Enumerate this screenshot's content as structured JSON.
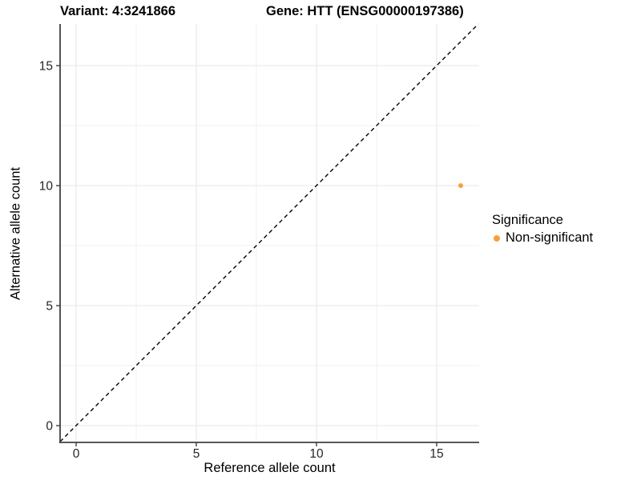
{
  "titles": {
    "variant": "Variant: 4:3241866",
    "gene": "Gene: HTT (ENSG00000197386)"
  },
  "chart_data": {
    "type": "scatter",
    "title_left": "Variant: 4:3241866",
    "title_right": "Gene: HTT (ENSG00000197386)",
    "xlabel": "Reference allele count",
    "ylabel": "Alternative allele count",
    "xlim": [
      -0.667,
      16.767
    ],
    "ylim": [
      -0.7,
      16.733
    ],
    "x_ticks": [
      0,
      5,
      10,
      15
    ],
    "y_ticks": [
      0,
      5,
      10,
      15
    ],
    "x_minor_ticks": [
      2.5,
      7.5,
      12.5
    ],
    "y_minor_ticks": [
      2.5,
      7.5,
      12.5
    ],
    "grid": true,
    "reference_line": {
      "equation": "y = x",
      "style": "dashed",
      "color": "#000000"
    },
    "series": [
      {
        "name": "Non-significant",
        "color": "#F9A03C",
        "points": [
          {
            "x": 16,
            "y": 10
          }
        ]
      }
    ],
    "legend": {
      "position": "right",
      "title": "Significance",
      "entries": [
        {
          "label": "Non-significant",
          "color": "#F9A03C"
        }
      ]
    },
    "colors": {
      "axis_line": "#404040",
      "major_grid": "#E6E6E6",
      "minor_grid": "#F2F2F2",
      "tick_label": "#262626"
    }
  }
}
